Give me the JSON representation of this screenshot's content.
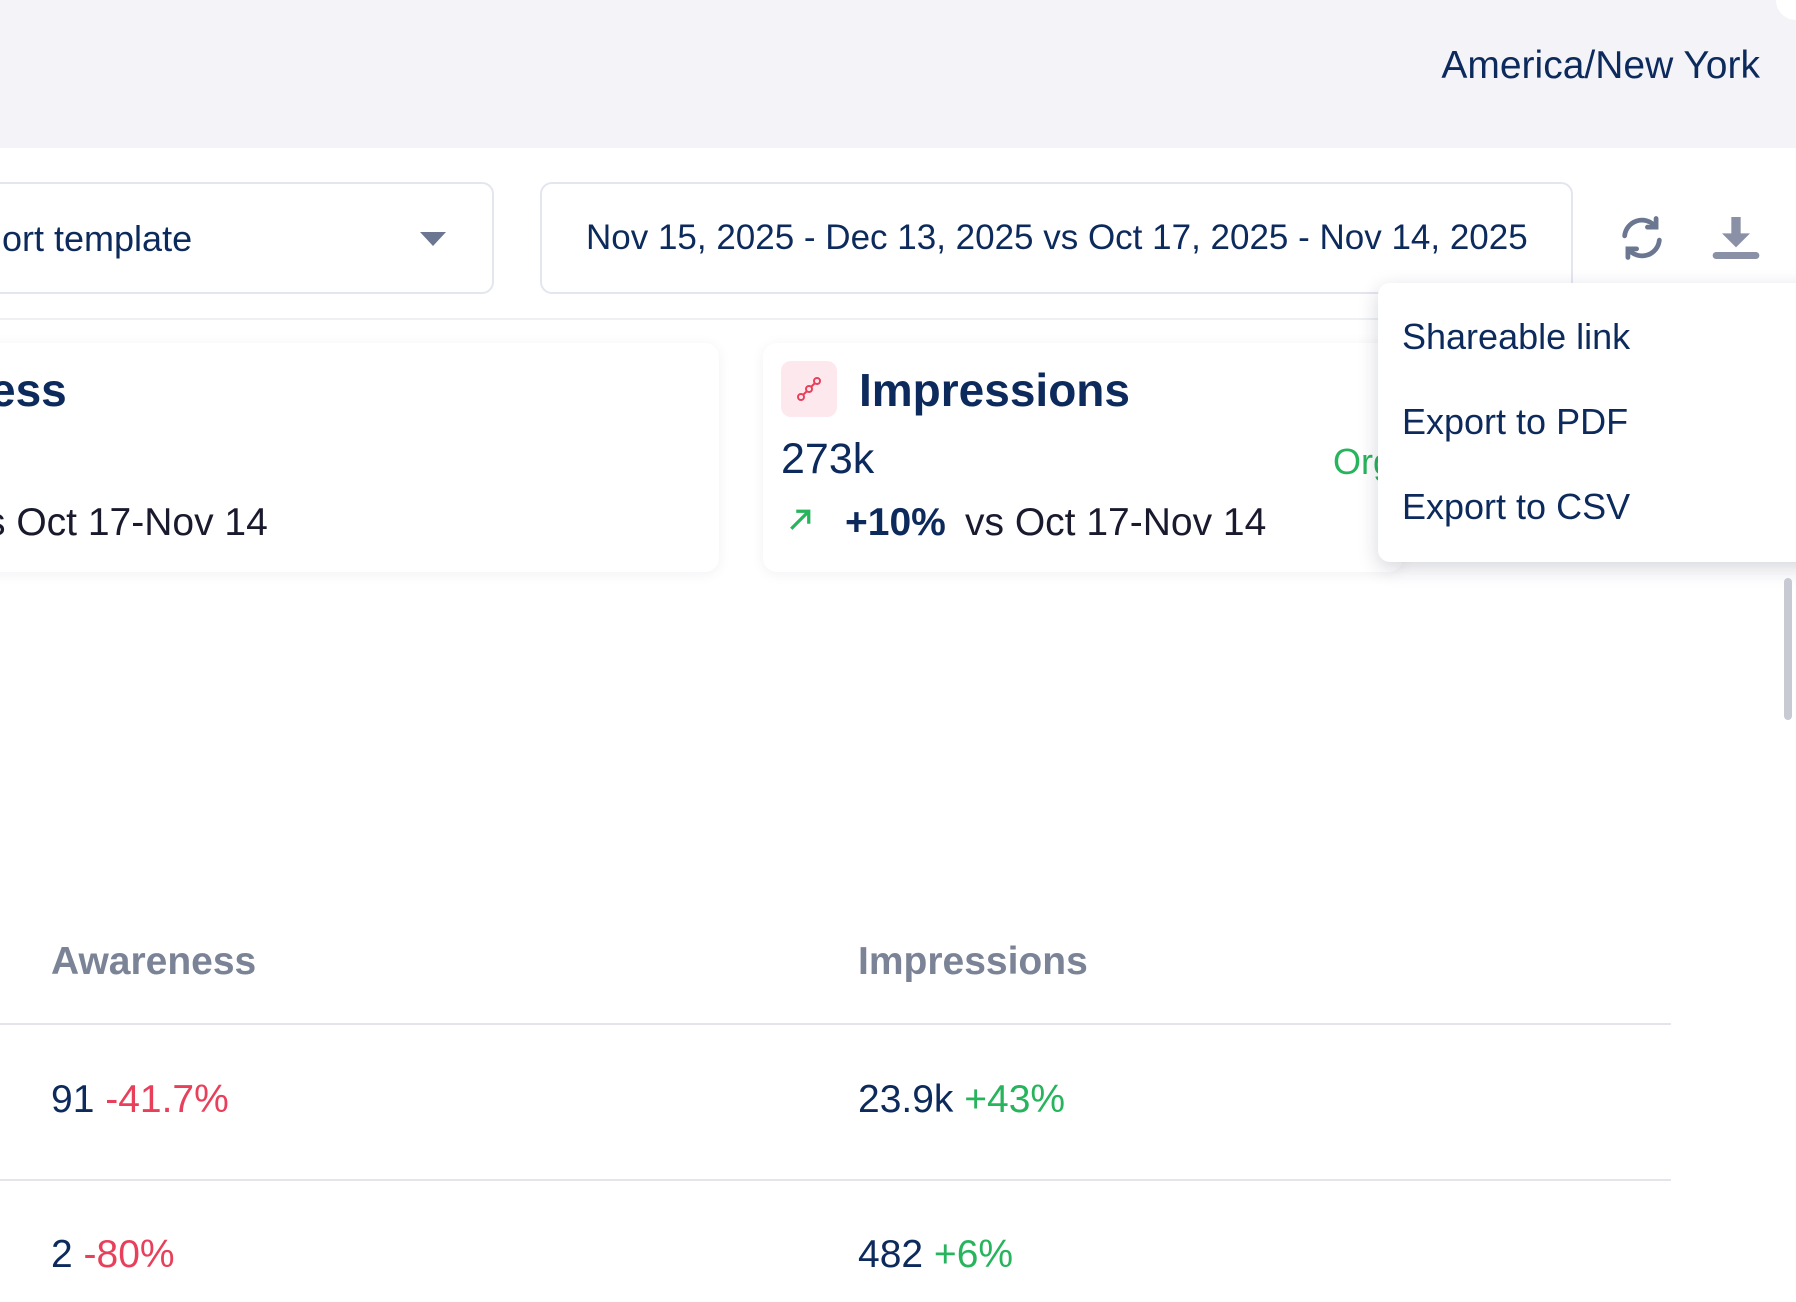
{
  "header": {
    "timezone": "America/New York"
  },
  "toolbar": {
    "template_label": "ort template",
    "date_range": "Nov 15, 2025 - Dec 13, 2025 vs Oct 17, 2025 - Nov 14, 2025",
    "refresh_icon": "refresh-icon",
    "download_icon": "download-icon"
  },
  "cards": [
    {
      "title": "ess",
      "comparison": "s Oct 17-Nov 14"
    },
    {
      "title": "Impressions",
      "value": "273k",
      "change": "+10%",
      "comparison": "vs Oct 17-Nov 14",
      "tag": "Org",
      "icon": "connected-nodes-icon"
    }
  ],
  "menu": {
    "items": [
      "Shareable link",
      "Export to PDF",
      "Export to CSV"
    ]
  },
  "table": {
    "headers": [
      "Awareness",
      "Impressions"
    ],
    "rows": [
      {
        "awareness": "91",
        "awareness_change": "-41.7%",
        "impressions": "23.9k",
        "impressions_change": "+43%"
      },
      {
        "awareness": "2",
        "awareness_change": "-80%",
        "impressions": "482",
        "impressions_change": "+6%"
      }
    ]
  },
  "colors": {
    "primary": "#0d2a5c",
    "negative": "#e8405a",
    "positive": "#27b45c",
    "accent": "#e8405a"
  }
}
